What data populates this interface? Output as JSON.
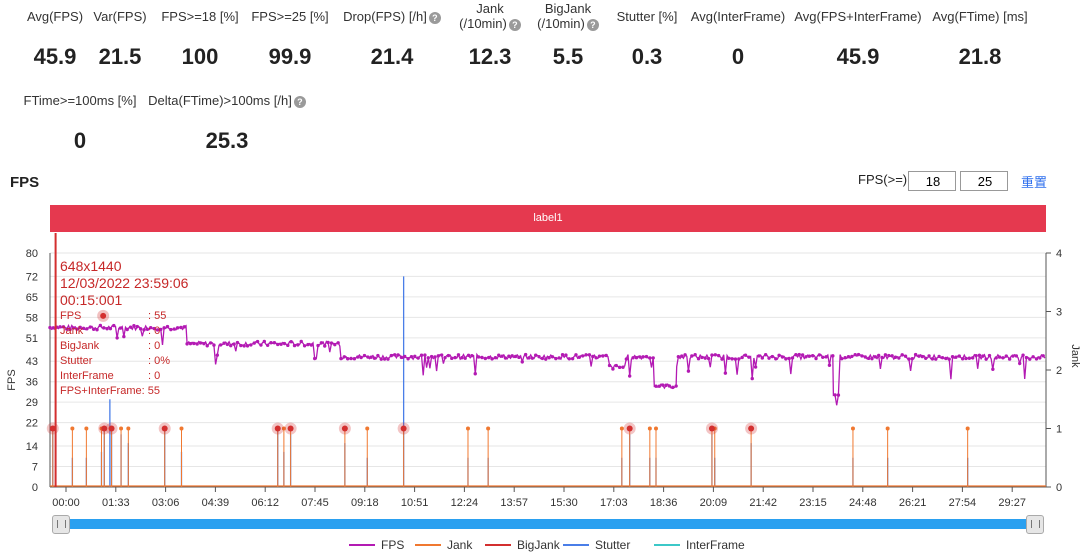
{
  "metrics_row1": [
    {
      "label": "Avg(FPS)",
      "value": "45.9",
      "help": false
    },
    {
      "label": "Var(FPS)",
      "value": "21.5",
      "help": false
    },
    {
      "label": "FPS>=18 [%]",
      "value": "100",
      "help": false
    },
    {
      "label": "FPS>=25 [%]",
      "value": "99.9",
      "help": false
    },
    {
      "label": "Drop(FPS) [/h]",
      "value": "21.4",
      "help": true
    },
    {
      "label": "Jank",
      "label2": "(/10min)",
      "value": "12.3",
      "help": true
    },
    {
      "label": "BigJank",
      "label2": "(/10min)",
      "value": "5.5",
      "help": true
    },
    {
      "label": "Stutter [%]",
      "value": "0.3",
      "help": false
    },
    {
      "label": "Avg(InterFrame)",
      "value": "0",
      "help": false
    },
    {
      "label": "Avg(FPS+InterFrame)",
      "value": "45.9",
      "help": false
    },
    {
      "label": "Avg(FTime) [ms]",
      "value": "21.8",
      "help": false
    }
  ],
  "metrics_row2": [
    {
      "label": "FTime>=100ms [%]",
      "value": "0",
      "help": false
    },
    {
      "label": "Delta(FTime)>100ms [/h]",
      "value": "25.3",
      "help": true
    }
  ],
  "section_title": "FPS",
  "threshold": {
    "label": "FPS(>=)",
    "low": "18",
    "high": "25",
    "reset_label": "重置"
  },
  "label_bar": "label1",
  "tooltip": {
    "resolution": "648x1440",
    "datetime": "12/03/2022 23:59:06",
    "elapsed": "00:15:001",
    "rows": [
      {
        "k": "FPS",
        "v": ": 55"
      },
      {
        "k": "Jank",
        "v": ": 0"
      },
      {
        "k": "BigJank",
        "v": ": 0"
      },
      {
        "k": "Stutter",
        "v": ": 0%"
      },
      {
        "k": "InterFrame",
        "v": ": 0"
      },
      {
        "k": "FPS+InterFrame",
        "v": ": 55",
        "wide": true
      }
    ]
  },
  "colors": {
    "fps": "#b31ab3",
    "jank": "#f07830",
    "bigjank": "#d32f2f",
    "stutter": "#4a7ee8",
    "interframe": "#3cc8c8",
    "label_bar": "#e5394f"
  },
  "chart_data": {
    "type": "line",
    "ylabel": "FPS",
    "y2label": "Jank",
    "ylim": [
      0,
      80
    ],
    "y2lim": [
      0,
      4
    ],
    "yticks": [
      0,
      7,
      14,
      22,
      29,
      36,
      43,
      51,
      58,
      65,
      72,
      80
    ],
    "y2ticks": [
      0,
      1,
      2,
      3,
      4
    ],
    "xlim": [
      0,
      1780
    ],
    "xticks": [
      "00:00",
      "01:33",
      "03:06",
      "04:39",
      "06:12",
      "07:45",
      "09:18",
      "10:51",
      "12:24",
      "13:57",
      "15:30",
      "17:03",
      "18:36",
      "20:09",
      "21:42",
      "23:15",
      "24:48",
      "26:21",
      "27:54",
      "29:27"
    ],
    "legend_position": "bottom",
    "series": [
      {
        "name": "FPS",
        "levels": [
          {
            "t0": 0,
            "t1": 245,
            "v": 54.5
          },
          {
            "t0": 245,
            "t1": 520,
            "v": 49
          },
          {
            "t0": 520,
            "t1": 1000,
            "v": 44.5
          },
          {
            "t0": 1000,
            "t1": 1030,
            "v": 41
          },
          {
            "t0": 1030,
            "t1": 1080,
            "v": 44.5
          },
          {
            "t0": 1080,
            "t1": 1120,
            "v": 34.5
          },
          {
            "t0": 1120,
            "t1": 1400,
            "v": 44.5
          },
          {
            "t0": 1400,
            "t1": 1412,
            "v": 32
          },
          {
            "t0": 1412,
            "t1": 1780,
            "v": 44.5
          }
        ]
      },
      {
        "name": "Jank",
        "events": [
          [
            5,
            1
          ],
          [
            40,
            1
          ],
          [
            65,
            1
          ],
          [
            92,
            1
          ],
          [
            97,
            1
          ],
          [
            110,
            1
          ],
          [
            127,
            1
          ],
          [
            140,
            1
          ],
          [
            205,
            1
          ],
          [
            235,
            1
          ],
          [
            407,
            1
          ],
          [
            418,
            1
          ],
          [
            430,
            1
          ],
          [
            527,
            1
          ],
          [
            567,
            1
          ],
          [
            632,
            1
          ],
          [
            747,
            1
          ],
          [
            783,
            1
          ],
          [
            1022,
            1
          ],
          [
            1036,
            1
          ],
          [
            1072,
            1
          ],
          [
            1083,
            1
          ],
          [
            1183,
            1
          ],
          [
            1188,
            1
          ],
          [
            1253,
            1
          ],
          [
            1435,
            1
          ],
          [
            1497,
            1
          ],
          [
            1640,
            1
          ]
        ]
      },
      {
        "name": "BigJank",
        "events": [
          [
            5,
            1
          ],
          [
            97,
            1
          ],
          [
            110,
            1
          ],
          [
            205,
            1
          ],
          [
            407,
            1
          ],
          [
            430,
            1
          ],
          [
            527,
            1
          ],
          [
            632,
            1
          ],
          [
            1036,
            1
          ],
          [
            1183,
            1
          ],
          [
            1253,
            1
          ]
        ]
      },
      {
        "name": "Stutter",
        "events": [
          [
            5,
            20
          ],
          [
            40,
            10
          ],
          [
            65,
            10
          ],
          [
            92,
            12
          ],
          [
            97,
            20
          ],
          [
            107,
            30
          ],
          [
            110,
            20
          ],
          [
            127,
            18
          ],
          [
            140,
            15
          ],
          [
            205,
            20
          ],
          [
            235,
            12
          ],
          [
            407,
            20
          ],
          [
            418,
            12
          ],
          [
            430,
            18
          ],
          [
            527,
            15
          ],
          [
            567,
            10
          ],
          [
            632,
            72
          ],
          [
            747,
            10
          ],
          [
            783,
            10
          ],
          [
            1022,
            10
          ],
          [
            1036,
            18
          ],
          [
            1072,
            10
          ],
          [
            1083,
            10
          ],
          [
            1183,
            18
          ],
          [
            1188,
            10
          ],
          [
            1253,
            15
          ],
          [
            1435,
            10
          ],
          [
            1497,
            10
          ],
          [
            1640,
            10
          ]
        ]
      },
      {
        "name": "InterFrame",
        "events": []
      }
    ],
    "marker_time": 10
  }
}
